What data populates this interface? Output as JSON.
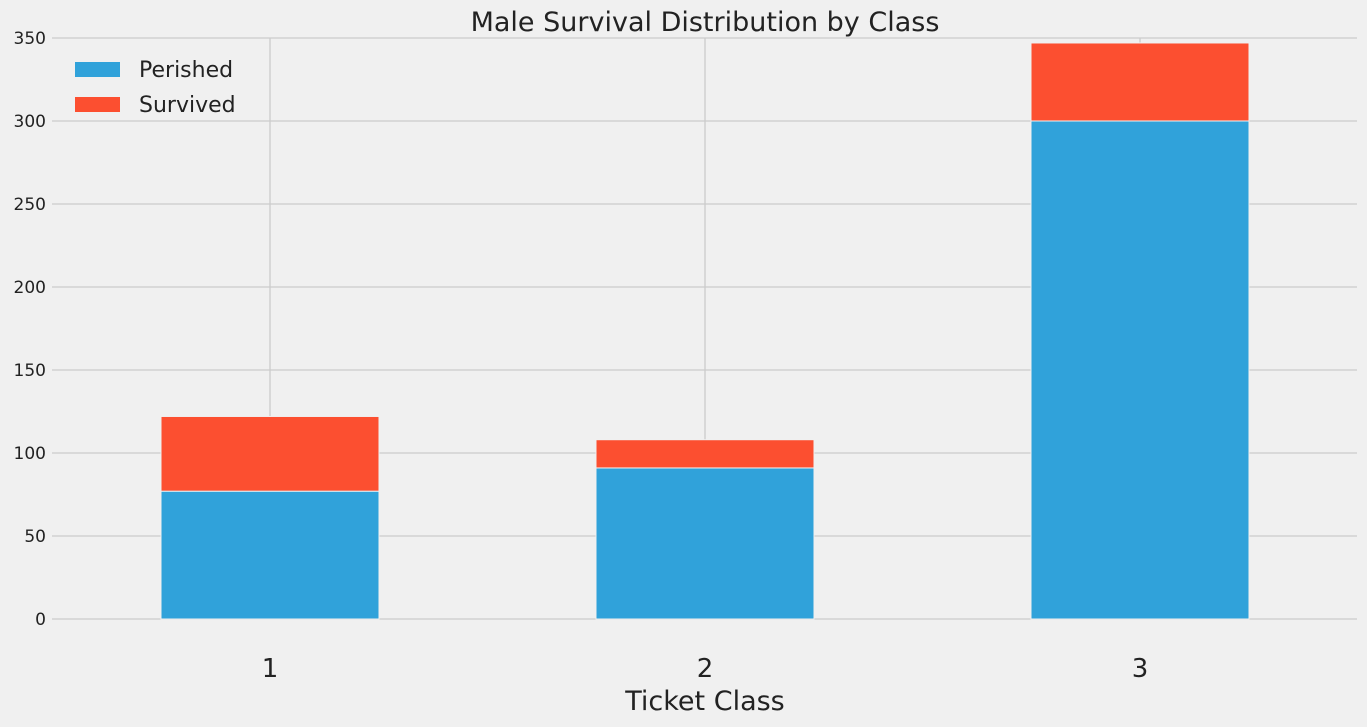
{
  "chart_data": {
    "type": "bar",
    "stacked": true,
    "title": "Male Survival Distribution by Class",
    "xlabel": "Ticket Class",
    "ylabel": "",
    "categories": [
      "1",
      "2",
      "3"
    ],
    "series": [
      {
        "name": "Perished",
        "values": [
          77,
          91,
          300
        ],
        "color": "#30a2da"
      },
      {
        "name": "Survived",
        "values": [
          45,
          17,
          47
        ],
        "color": "#fc4f30"
      }
    ],
    "ylim": [
      0,
      350
    ],
    "yticks": [
      0,
      50,
      100,
      150,
      200,
      250,
      300,
      350
    ],
    "grid": true,
    "legend_position": "top-left",
    "background": "#f0f0f0",
    "grid_color": "#cbcbcb"
  }
}
